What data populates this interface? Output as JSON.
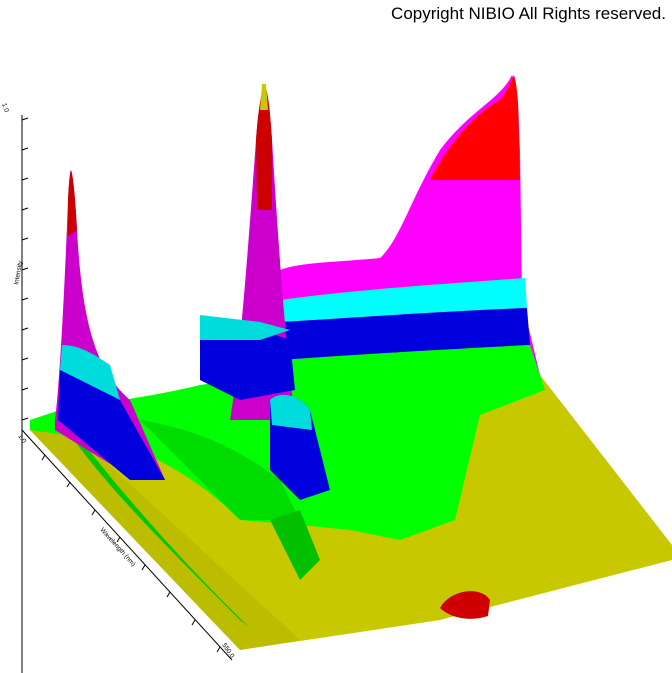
{
  "copyright": "Copyright NIBIO All Rights reserved.",
  "chart_data": {
    "type": "surface3d",
    "description": "3D fluorescence-style spectrum surface (intensity over two wavelength axes)",
    "axes": {
      "z": {
        "label": "Intensity",
        "top_value": "1",
        "top_value_full": "1.0"
      },
      "y": {
        "label": "Wavelength (nm)",
        "start": "1.0",
        "end": "550.0"
      },
      "x": {
        "label": ""
      }
    },
    "color_bands": [
      "#c8c800",
      "#00dc00",
      "#00ff00",
      "#0000dc",
      "#00ffff",
      "#ff00ff",
      "#cc00cc",
      "#ff0000"
    ],
    "peaks": [
      {
        "name": "left-peak",
        "relative_height": 0.72
      },
      {
        "name": "center-peak",
        "relative_height": 0.98
      },
      {
        "name": "right-plateau",
        "relative_height": 0.95
      }
    ]
  }
}
